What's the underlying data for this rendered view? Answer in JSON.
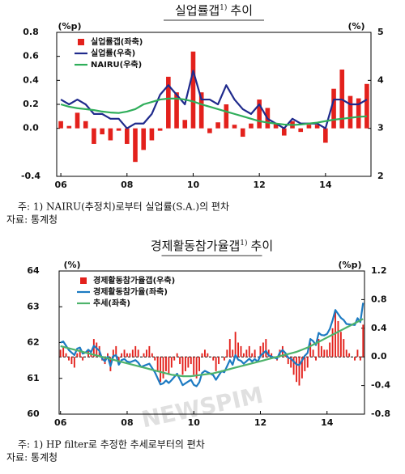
{
  "watermark": "NEWSPIM",
  "chart_data": [
    {
      "type": "combo",
      "title": "실업률갭",
      "title_note": "1)",
      "title_suffix": "추이",
      "y_unit": "(%p)",
      "y2_unit": "(%)",
      "categories": [
        "06",
        null,
        null,
        null,
        null,
        null,
        null,
        null,
        "08",
        null,
        null,
        null,
        null,
        null,
        null,
        null,
        "10",
        null,
        null,
        null,
        null,
        null,
        null,
        null,
        "12",
        null,
        null,
        null,
        null,
        null,
        null,
        null,
        "14",
        null,
        null,
        null,
        null,
        null
      ],
      "ylim": [
        -0.4,
        0.8
      ],
      "yticks": [
        -0.4,
        {
          "value": 0,
          "label": "0.0"
        },
        0.2,
        0.4,
        0.6,
        0.8
      ],
      "y2lim": [
        2,
        5
      ],
      "y2ticks": [
        2,
        3,
        4,
        5
      ],
      "legend": "upper left",
      "zero_line": false,
      "series": [
        {
          "name": "실업률갭(좌축)",
          "type": "bar",
          "color": "#e3211c",
          "values": [
            0.06,
            0.02,
            0.13,
            0.06,
            -0.13,
            -0.05,
            -0.1,
            -0.02,
            -0.13,
            -0.28,
            -0.18,
            -0.1,
            -0.02,
            0.43,
            0.3,
            0.07,
            0.64,
            0.3,
            -0.04,
            0.05,
            0.2,
            0.03,
            -0.07,
            0.04,
            0.24,
            0.17,
            0.04,
            -0.06,
            0.06,
            -0.03,
            0.03,
            0.03,
            -0.12,
            0.33,
            0.49,
            0.27,
            0.25,
            0.37
          ]
        },
        {
          "name": "실업률(우축)",
          "type": "line",
          "axis": "y2",
          "color": "#1f2a8c",
          "values": [
            3.6,
            3.5,
            3.6,
            3.5,
            3.3,
            3.3,
            3.2,
            3.2,
            3.0,
            3.1,
            3.1,
            3.3,
            3.7,
            3.9,
            3.7,
            3.5,
            4.2,
            3.6,
            3.6,
            3.5,
            3.9,
            3.6,
            3.4,
            3.3,
            3.5,
            3.2,
            3.1,
            3.0,
            3.2,
            3.1,
            3.1,
            3.1,
            3.0,
            3.6,
            3.6,
            3.5,
            3.5,
            3.6
          ]
        },
        {
          "name": "NAIRU(우축)",
          "type": "line",
          "axis": "y2",
          "color": "#2fae5a",
          "values": [
            3.5,
            3.45,
            3.42,
            3.4,
            3.38,
            3.35,
            3.33,
            3.32,
            3.35,
            3.4,
            3.5,
            3.55,
            3.6,
            3.62,
            3.62,
            3.6,
            3.56,
            3.5,
            3.45,
            3.4,
            3.35,
            3.3,
            3.25,
            3.2,
            3.15,
            3.12,
            3.1,
            3.08,
            3.07,
            3.08,
            3.1,
            3.12,
            3.15,
            3.18,
            3.2,
            3.22,
            3.24,
            3.25
          ]
        }
      ],
      "notes": [
        "주: 1) NAIRU(추정치)로부터 실업률(S.A.)의 편차",
        "자료: 통계청"
      ]
    },
    {
      "type": "combo",
      "title": "경제활동참가율갭",
      "title_note": "1)",
      "title_suffix": "추이",
      "y_unit": "(%)",
      "y2_unit": "(%p)",
      "categories": [
        "06",
        null,
        null,
        null,
        null,
        null,
        null,
        null,
        null,
        null,
        null,
        null,
        null,
        null,
        null,
        null,
        null,
        null,
        null,
        null,
        null,
        null,
        null,
        null,
        "08",
        null,
        null,
        null,
        null,
        null,
        null,
        null,
        null,
        null,
        null,
        null,
        null,
        null,
        null,
        null,
        null,
        null,
        null,
        null,
        null,
        null,
        null,
        null,
        "10",
        null,
        null,
        null,
        null,
        null,
        null,
        null,
        null,
        null,
        null,
        null,
        null,
        null,
        null,
        null,
        null,
        null,
        null,
        null,
        null,
        null,
        null,
        null,
        "12",
        null,
        null,
        null,
        null,
        null,
        null,
        null,
        null,
        null,
        null,
        null,
        null,
        null,
        null,
        null,
        null,
        null,
        null,
        null,
        null,
        null,
        null,
        null,
        "14",
        null,
        null,
        null,
        null,
        null,
        null,
        null,
        null,
        null,
        null,
        null,
        null,
        null
      ],
      "ylim": [
        60,
        64
      ],
      "yticks": [
        60,
        61,
        62,
        63,
        64
      ],
      "y2lim": [
        -0.8,
        1.2
      ],
      "y2ticks": [
        -0.8,
        -0.4,
        {
          "value": 0,
          "label": "0.0"
        },
        0.4,
        0.8,
        1.2
      ],
      "legend": "upper left",
      "zero_line": true,
      "series": [
        {
          "name": "경제활동참가율갭(우축)",
          "type": "bar",
          "axis": "y2",
          "color": "#e3211c",
          "values": [
            0.1,
            0.15,
            0.05,
            -0.05,
            -0.1,
            -0.15,
            0.05,
            0.1,
            -0.05,
            0.0,
            0.1,
            0.05,
            0.25,
            0.2,
            0.15,
            -0.05,
            -0.1,
            0.05,
            -0.2,
            0.1,
            0.15,
            -0.1,
            0.05,
            0.1,
            0.05,
            0.05,
            0.1,
            0.15,
            0.1,
            0.0,
            0.05,
            0.1,
            0.15,
            0.05,
            -0.05,
            -0.2,
            -0.35,
            -0.3,
            -0.2,
            -0.25,
            -0.15,
            -0.05,
            0.05,
            -0.1,
            -0.25,
            -0.2,
            -0.15,
            -0.1,
            -0.25,
            -0.3,
            -0.2,
            0.05,
            0.1,
            0.05,
            0.0,
            -0.05,
            -0.2,
            -0.1,
            0.0,
            -0.05,
            0.1,
            0.25,
            0.1,
            0.35,
            0.2,
            0.15,
            0.05,
            0.1,
            0.15,
            0.05,
            0.1,
            0.0,
            0.15,
            0.2,
            0.25,
            0.1,
            0.05,
            0.0,
            -0.05,
            0.1,
            0.15,
            0.05,
            -0.1,
            -0.15,
            -0.25,
            -0.35,
            -0.4,
            -0.3,
            -0.2,
            -0.15,
            0.2,
            0.1,
            -0.05,
            0.25,
            0.15,
            0.1,
            0.1,
            0.2,
            0.4,
            0.65,
            0.5,
            0.35,
            0.25,
            0.1,
            0.05,
            0.0,
            -0.05,
            0.1,
            -0.05,
            0.45
          ]
        },
        {
          "name": "경제활동참가율(좌축)",
          "type": "line",
          "color": "#1c7ac2",
          "values": [
            62.0,
            62.03,
            61.91,
            61.79,
            61.72,
            61.65,
            61.83,
            61.86,
            61.69,
            61.72,
            61.8,
            61.73,
            61.91,
            61.84,
            61.77,
            61.55,
            61.48,
            61.61,
            61.34,
            61.62,
            61.65,
            61.38,
            61.51,
            61.54,
            61.47,
            61.45,
            61.48,
            61.51,
            61.44,
            61.32,
            61.35,
            61.38,
            61.41,
            61.29,
            61.17,
            61.0,
            60.83,
            60.86,
            60.94,
            60.87,
            60.95,
            61.04,
            61.13,
            60.97,
            60.81,
            60.86,
            60.91,
            60.96,
            60.82,
            60.78,
            60.89,
            61.15,
            61.21,
            61.17,
            61.13,
            61.09,
            60.96,
            61.08,
            61.2,
            61.17,
            61.34,
            61.51,
            61.38,
            61.65,
            61.52,
            61.49,
            61.41,
            61.48,
            61.55,
            61.47,
            61.54,
            61.46,
            61.63,
            61.7,
            61.77,
            61.64,
            61.61,
            61.58,
            61.55,
            61.72,
            61.79,
            61.71,
            61.58,
            61.55,
            61.47,
            61.39,
            61.37,
            61.5,
            61.63,
            61.71,
            62.1,
            62.04,
            61.93,
            62.27,
            62.21,
            62.2,
            62.24,
            62.38,
            62.62,
            62.91,
            62.8,
            62.69,
            62.63,
            62.52,
            62.51,
            62.5,
            62.49,
            62.68,
            62.57,
            63.11
          ]
        },
        {
          "name": "추세(좌축)",
          "type": "line",
          "color": "#4db36b",
          "values": [
            61.9,
            61.88,
            61.86,
            61.84,
            61.82,
            61.8,
            61.78,
            61.76,
            61.74,
            61.72,
            61.7,
            61.68,
            61.66,
            61.64,
            61.62,
            61.6,
            61.58,
            61.56,
            61.54,
            61.52,
            61.5,
            61.48,
            61.46,
            61.44,
            61.42,
            61.4,
            61.38,
            61.36,
            61.34,
            61.32,
            61.3,
            61.28,
            61.26,
            61.24,
            61.22,
            61.2,
            61.18,
            61.16,
            61.14,
            61.12,
            61.1,
            61.09,
            61.08,
            61.07,
            61.06,
            61.06,
            61.06,
            61.06,
            61.07,
            61.08,
            61.09,
            61.1,
            61.11,
            61.12,
            61.13,
            61.14,
            61.16,
            61.18,
            61.2,
            61.22,
            61.24,
            61.26,
            61.28,
            61.3,
            61.32,
            61.34,
            61.36,
            61.38,
            61.4,
            61.42,
            61.44,
            61.46,
            61.48,
            61.5,
            61.52,
            61.54,
            61.56,
            61.58,
            61.6,
            61.62,
            61.64,
            61.66,
            61.68,
            61.7,
            61.72,
            61.74,
            61.77,
            61.8,
            61.83,
            61.86,
            61.9,
            61.94,
            61.98,
            62.02,
            62.06,
            62.1,
            62.14,
            62.18,
            62.22,
            62.26,
            62.3,
            62.34,
            62.38,
            62.42,
            62.46,
            62.5,
            62.54,
            62.58,
            62.62,
            62.66
          ]
        }
      ],
      "notes": [
        "주: 1) HP filter로 추정한 추세로부터의 편차",
        "자료: 통계청"
      ]
    }
  ]
}
